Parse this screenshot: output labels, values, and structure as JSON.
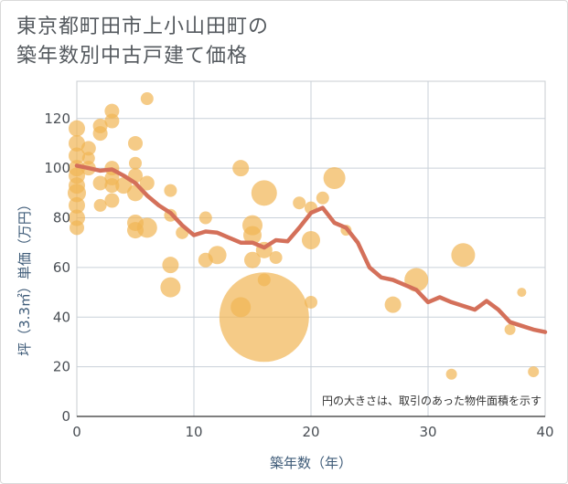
{
  "title_line1": "東京都町田市上小山田町の",
  "title_line2": "築年数別中古戸建て価格",
  "chart_data": {
    "type": "scatter",
    "xlabel": "築年数（年）",
    "ylabel": "坪（3.3㎡）単価（万円）",
    "xlim": [
      0,
      40
    ],
    "ylim": [
      0,
      135
    ],
    "xticks": [
      0,
      10,
      20,
      30,
      40
    ],
    "yticks": [
      0,
      20,
      40,
      60,
      80,
      100,
      120
    ],
    "grid": true,
    "note": "円の大きさは、取引のあった物件面積を示す",
    "colors": {
      "bubble": "#f1b554",
      "line": "#d4705a"
    },
    "series": [
      {
        "kind": "bubble",
        "points": [
          {
            "x": 0,
            "y": 116,
            "s": 9
          },
          {
            "x": 0,
            "y": 110,
            "s": 9
          },
          {
            "x": 0,
            "y": 105,
            "s": 9
          },
          {
            "x": 0,
            "y": 100,
            "s": 9
          },
          {
            "x": 0,
            "y": 97,
            "s": 9
          },
          {
            "x": 0,
            "y": 93,
            "s": 9
          },
          {
            "x": 0,
            "y": 90,
            "s": 10
          },
          {
            "x": 0,
            "y": 85,
            "s": 9
          },
          {
            "x": 0,
            "y": 80,
            "s": 9
          },
          {
            "x": 0,
            "y": 76,
            "s": 8
          },
          {
            "x": 1,
            "y": 108,
            "s": 8
          },
          {
            "x": 1,
            "y": 104,
            "s": 7
          },
          {
            "x": 1,
            "y": 100,
            "s": 8
          },
          {
            "x": 2,
            "y": 117,
            "s": 8
          },
          {
            "x": 2,
            "y": 114,
            "s": 8
          },
          {
            "x": 2,
            "y": 94,
            "s": 8
          },
          {
            "x": 2,
            "y": 85,
            "s": 7
          },
          {
            "x": 3,
            "y": 123,
            "s": 8
          },
          {
            "x": 3,
            "y": 119,
            "s": 8
          },
          {
            "x": 3,
            "y": 100,
            "s": 8
          },
          {
            "x": 3,
            "y": 96,
            "s": 8
          },
          {
            "x": 3,
            "y": 93,
            "s": 8
          },
          {
            "x": 3,
            "y": 87,
            "s": 8
          },
          {
            "x": 4,
            "y": 93,
            "s": 9
          },
          {
            "x": 5,
            "y": 110,
            "s": 8
          },
          {
            "x": 5,
            "y": 102,
            "s": 7
          },
          {
            "x": 5,
            "y": 97,
            "s": 8
          },
          {
            "x": 5,
            "y": 90,
            "s": 9
          },
          {
            "x": 5,
            "y": 78,
            "s": 9
          },
          {
            "x": 5,
            "y": 75,
            "s": 9
          },
          {
            "x": 6,
            "y": 128,
            "s": 7
          },
          {
            "x": 6,
            "y": 94,
            "s": 8
          },
          {
            "x": 6,
            "y": 76,
            "s": 11
          },
          {
            "x": 8,
            "y": 91,
            "s": 7
          },
          {
            "x": 8,
            "y": 81,
            "s": 7
          },
          {
            "x": 8,
            "y": 61,
            "s": 9
          },
          {
            "x": 8,
            "y": 52,
            "s": 11
          },
          {
            "x": 9,
            "y": 74,
            "s": 7
          },
          {
            "x": 11,
            "y": 80,
            "s": 7
          },
          {
            "x": 11,
            "y": 63,
            "s": 8
          },
          {
            "x": 12,
            "y": 65,
            "s": 10
          },
          {
            "x": 14,
            "y": 100,
            "s": 9
          },
          {
            "x": 14,
            "y": 44,
            "s": 11
          },
          {
            "x": 15,
            "y": 77,
            "s": 11
          },
          {
            "x": 15,
            "y": 73,
            "s": 10
          },
          {
            "x": 15,
            "y": 63,
            "s": 9
          },
          {
            "x": 16,
            "y": 90,
            "s": 14
          },
          {
            "x": 16,
            "y": 67,
            "s": 9
          },
          {
            "x": 16,
            "y": 55,
            "s": 7
          },
          {
            "x": 16,
            "y": 40,
            "s": 49
          },
          {
            "x": 17,
            "y": 64,
            "s": 7
          },
          {
            "x": 19,
            "y": 86,
            "s": 7
          },
          {
            "x": 20,
            "y": 84,
            "s": 7
          },
          {
            "x": 20,
            "y": 71,
            "s": 10
          },
          {
            "x": 20,
            "y": 46,
            "s": 7
          },
          {
            "x": 21,
            "y": 88,
            "s": 7
          },
          {
            "x": 22,
            "y": 96,
            "s": 12
          },
          {
            "x": 23,
            "y": 75,
            "s": 6
          },
          {
            "x": 27,
            "y": 45,
            "s": 9
          },
          {
            "x": 29,
            "y": 55,
            "s": 13
          },
          {
            "x": 32,
            "y": 17,
            "s": 6
          },
          {
            "x": 33,
            "y": 65,
            "s": 13
          },
          {
            "x": 37,
            "y": 35,
            "s": 6
          },
          {
            "x": 38,
            "y": 50,
            "s": 5
          },
          {
            "x": 39,
            "y": 18,
            "s": 6
          }
        ]
      },
      {
        "kind": "line",
        "points": [
          {
            "x": 0,
            "y": 101
          },
          {
            "x": 1,
            "y": 100
          },
          {
            "x": 2,
            "y": 99
          },
          {
            "x": 3,
            "y": 99.5
          },
          {
            "x": 4,
            "y": 97
          },
          {
            "x": 5,
            "y": 94
          },
          {
            "x": 6,
            "y": 89
          },
          {
            "x": 7,
            "y": 85
          },
          {
            "x": 8,
            "y": 82
          },
          {
            "x": 9,
            "y": 77
          },
          {
            "x": 10,
            "y": 73
          },
          {
            "x": 11,
            "y": 74.5
          },
          {
            "x": 12,
            "y": 74
          },
          {
            "x": 13,
            "y": 72
          },
          {
            "x": 14,
            "y": 70
          },
          {
            "x": 15,
            "y": 70
          },
          {
            "x": 16,
            "y": 68
          },
          {
            "x": 17,
            "y": 71
          },
          {
            "x": 18,
            "y": 70.5
          },
          {
            "x": 19,
            "y": 76
          },
          {
            "x": 20,
            "y": 82
          },
          {
            "x": 21,
            "y": 84
          },
          {
            "x": 22,
            "y": 78
          },
          {
            "x": 23,
            "y": 76
          },
          {
            "x": 24,
            "y": 70
          },
          {
            "x": 25,
            "y": 60
          },
          {
            "x": 26,
            "y": 56
          },
          {
            "x": 27,
            "y": 55
          },
          {
            "x": 28,
            "y": 53
          },
          {
            "x": 29,
            "y": 51
          },
          {
            "x": 30,
            "y": 46
          },
          {
            "x": 31,
            "y": 48
          },
          {
            "x": 32,
            "y": 46
          },
          {
            "x": 33,
            "y": 44.5
          },
          {
            "x": 34,
            "y": 43
          },
          {
            "x": 35,
            "y": 46.5
          },
          {
            "x": 36,
            "y": 43
          },
          {
            "x": 37,
            "y": 38
          },
          {
            "x": 38,
            "y": 36.5
          },
          {
            "x": 39,
            "y": 35
          },
          {
            "x": 40,
            "y": 34
          }
        ]
      }
    ]
  }
}
